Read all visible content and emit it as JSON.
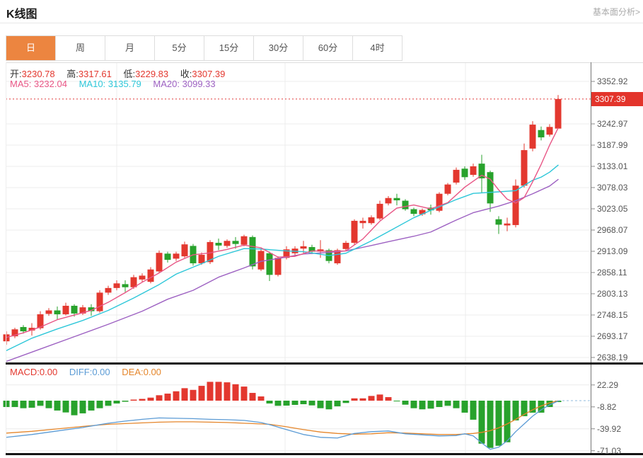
{
  "header": {
    "title": "K线图",
    "link": "基本面分析>"
  },
  "tabs": {
    "items": [
      "日",
      "周",
      "月",
      "5分",
      "15分",
      "30分",
      "60分",
      "4时"
    ],
    "active_index": 0
  },
  "ohlc": {
    "open_label": "开:",
    "open": "3230.78",
    "high_label": "高:",
    "high": "3317.61",
    "low_label": "低:",
    "low": "3229.83",
    "close_label": "收:",
    "close": "3307.39"
  },
  "ma_row": {
    "ma5_label": "MA5:",
    "ma5": "3232.04",
    "ma10_label": "MA10:",
    "ma10": "3135.79",
    "ma20_label": "MA20:",
    "ma20": "3099.33"
  },
  "macd_row": {
    "macd_label": "MACD:",
    "macd": "0.00",
    "diff_label": "DIFF:",
    "diff": "0.00",
    "dea_label": "DEA:",
    "dea": "0.00"
  },
  "colors": {
    "up": "#e3382f",
    "down": "#28a22c",
    "ma5": "#e85585",
    "ma10": "#2ec7d9",
    "ma20": "#9d61c2",
    "diff": "#5b9bd5",
    "dea": "#e5862b",
    "tab_active_bg": "#ec8540",
    "badge_bg": "#e3342b",
    "price_line": "#e03b3b",
    "dashed_tail": "#8fbbde",
    "grid": "#ececec",
    "axis_line": "#777",
    "dark_border": "#141414"
  },
  "chart_data": {
    "type": "candlestick",
    "title": "K线图 daily candlestick with MA5/MA10/MA20 and MACD",
    "main_axis": {
      "ticks": [
        3352.92,
        3242.97,
        3187.99,
        3133.01,
        3078.03,
        3023.05,
        2968.07,
        2913.09,
        2858.11,
        2803.13,
        2748.15,
        2693.17,
        2638.19
      ],
      "top_value": 3402.4,
      "bottom_value": 2625.3,
      "current_price": 3307.39
    },
    "candles": [
      [
        2680,
        2706,
        2671,
        2698
      ],
      [
        2693,
        2715,
        2688,
        2711
      ],
      [
        2717,
        2722,
        2700,
        2706
      ],
      [
        2708,
        2727,
        2695,
        2715
      ],
      [
        2714,
        2758,
        2710,
        2750
      ],
      [
        2751,
        2766,
        2746,
        2760
      ],
      [
        2760,
        2770,
        2736,
        2750
      ],
      [
        2750,
        2780,
        2747,
        2772
      ],
      [
        2772,
        2776,
        2744,
        2752
      ],
      [
        2752,
        2774,
        2748,
        2768
      ],
      [
        2768,
        2776,
        2746,
        2758
      ],
      [
        2758,
        2812,
        2754,
        2806
      ],
      [
        2806,
        2824,
        2800,
        2818
      ],
      [
        2818,
        2838,
        2812,
        2830
      ],
      [
        2828,
        2838,
        2808,
        2820
      ],
      [
        2820,
        2852,
        2816,
        2846
      ],
      [
        2840,
        2856,
        2834,
        2850
      ],
      [
        2834,
        2872,
        2830,
        2866
      ],
      [
        2861,
        2915,
        2857,
        2909
      ],
      [
        2907,
        2912,
        2884,
        2891
      ],
      [
        2894,
        2912,
        2888,
        2907
      ],
      [
        2900,
        2938,
        2896,
        2931
      ],
      [
        2927,
        2932,
        2876,
        2882
      ],
      [
        2882,
        2910,
        2878,
        2904
      ],
      [
        2885,
        2942,
        2880,
        2937
      ],
      [
        2935,
        2946,
        2916,
        2928
      ],
      [
        2927,
        2944,
        2922,
        2940
      ],
      [
        2940,
        2950,
        2920,
        2932
      ],
      [
        2930,
        2956,
        2926,
        2952
      ],
      [
        2950,
        2954,
        2866,
        2874
      ],
      [
        2866,
        2920,
        2862,
        2914
      ],
      [
        2908,
        2912,
        2836,
        2852
      ],
      [
        2852,
        2900,
        2848,
        2896
      ],
      [
        2896,
        2926,
        2892,
        2918
      ],
      [
        2908,
        2926,
        2902,
        2920
      ],
      [
        2920,
        2940,
        2908,
        2926
      ],
      [
        2924,
        2930,
        2906,
        2912
      ],
      [
        2912,
        2942,
        2896,
        2918
      ],
      [
        2916,
        2920,
        2882,
        2888
      ],
      [
        2882,
        2920,
        2878,
        2916
      ],
      [
        2919,
        2940,
        2914,
        2935
      ],
      [
        2935,
        2996,
        2930,
        2992
      ],
      [
        2986,
        3000,
        2972,
        2992
      ],
      [
        2986,
        3006,
        2982,
        3001
      ],
      [
        2998,
        3044,
        2994,
        3036
      ],
      [
        3037,
        3056,
        3032,
        3051
      ],
      [
        3051,
        3062,
        3032,
        3045
      ],
      [
        3044,
        3048,
        3018,
        3022
      ],
      [
        3022,
        3026,
        3004,
        3010
      ],
      [
        3009,
        3024,
        3005,
        3020
      ],
      [
        3026,
        3034,
        3008,
        3019
      ],
      [
        3018,
        3066,
        3014,
        3062
      ],
      [
        3062,
        3090,
        3058,
        3086
      ],
      [
        3091,
        3130,
        3086,
        3124
      ],
      [
        3127,
        3133,
        3098,
        3105
      ],
      [
        3111,
        3140,
        3106,
        3133
      ],
      [
        3140,
        3163,
        3064,
        3102
      ],
      [
        3118,
        3122,
        3015,
        3037
      ],
      [
        2996,
        3004,
        2958,
        2982
      ],
      [
        2980,
        3000,
        2965,
        2985
      ],
      [
        2981,
        3099,
        2975,
        3083
      ],
      [
        3083,
        3192,
        3078,
        3175
      ],
      [
        3179,
        3250,
        3172,
        3241
      ],
      [
        3227,
        3236,
        3200,
        3208
      ],
      [
        3215,
        3242,
        3210,
        3235
      ],
      [
        3230.78,
        3317.61,
        3229.83,
        3307.39
      ]
    ],
    "ma_lines": {
      "ma5_points": [
        [
          0,
          2690
        ],
        [
          2,
          2702
        ],
        [
          4,
          2717
        ],
        [
          6,
          2736
        ],
        [
          8,
          2748
        ],
        [
          10,
          2760
        ],
        [
          12,
          2781
        ],
        [
          14,
          2806
        ],
        [
          16,
          2833
        ],
        [
          18,
          2857
        ],
        [
          20,
          2885
        ],
        [
          22,
          2904
        ],
        [
          24,
          2909
        ],
        [
          26,
          2918
        ],
        [
          28,
          2929
        ],
        [
          30,
          2922
        ],
        [
          32,
          2898
        ],
        [
          34,
          2900
        ],
        [
          36,
          2914
        ],
        [
          38,
          2913
        ],
        [
          40,
          2914
        ],
        [
          42,
          2945
        ],
        [
          44,
          2991
        ],
        [
          46,
          3025
        ],
        [
          48,
          3033
        ],
        [
          50,
          3023
        ],
        [
          52,
          3039
        ],
        [
          54,
          3079
        ],
        [
          56,
          3110
        ],
        [
          57,
          3100
        ],
        [
          58,
          3072
        ],
        [
          59,
          3048
        ],
        [
          60,
          3038
        ],
        [
          61,
          3052
        ],
        [
          62,
          3093
        ],
        [
          63,
          3138
        ],
        [
          64,
          3188
        ],
        [
          65,
          3232
        ]
      ],
      "ma10_points": [
        [
          0,
          2656
        ],
        [
          3,
          2688
        ],
        [
          6,
          2712
        ],
        [
          9,
          2734
        ],
        [
          12,
          2760
        ],
        [
          15,
          2792
        ],
        [
          18,
          2827
        ],
        [
          20,
          2854
        ],
        [
          23,
          2881
        ],
        [
          25,
          2900
        ],
        [
          28,
          2920
        ],
        [
          30,
          2919
        ],
        [
          33,
          2914
        ],
        [
          35,
          2912
        ],
        [
          38,
          2902
        ],
        [
          40,
          2908
        ],
        [
          43,
          2940
        ],
        [
          45,
          2964
        ],
        [
          48,
          3000
        ],
        [
          50,
          3019
        ],
        [
          53,
          3047
        ],
        [
          55,
          3063
        ],
        [
          58,
          3067
        ],
        [
          60,
          3070
        ],
        [
          62,
          3097
        ],
        [
          63,
          3105
        ],
        [
          64,
          3118
        ],
        [
          65,
          3136
        ]
      ],
      "ma20_points": [
        [
          0,
          2628
        ],
        [
          4,
          2660
        ],
        [
          8,
          2692
        ],
        [
          12,
          2724
        ],
        [
          16,
          2758
        ],
        [
          19,
          2789
        ],
        [
          22,
          2812
        ],
        [
          25,
          2846
        ],
        [
          28,
          2870
        ],
        [
          30,
          2887
        ],
        [
          33,
          2898
        ],
        [
          35,
          2906
        ],
        [
          38,
          2910
        ],
        [
          40,
          2914
        ],
        [
          43,
          2928
        ],
        [
          45,
          2938
        ],
        [
          48,
          2952
        ],
        [
          50,
          2963
        ],
        [
          53,
          2994
        ],
        [
          55,
          3013
        ],
        [
          58,
          3030
        ],
        [
          60,
          3044
        ],
        [
          62,
          3062
        ],
        [
          64,
          3082
        ],
        [
          65,
          3099
        ]
      ]
    },
    "macd": {
      "axis": {
        "ticks": [
          22.29,
          -8.82,
          -39.92,
          -71.03
        ],
        "top_value": 49.2,
        "bottom_value": -74.3
      },
      "histogram": [
        -9,
        -9,
        -10.7,
        -10,
        -7.3,
        -10.7,
        -14,
        -16.7,
        -20.7,
        -18,
        -14,
        -10.7,
        -7.3,
        -4,
        -1.5,
        1.5,
        2.5,
        4.3,
        7.7,
        10,
        13.3,
        17.7,
        15.3,
        21,
        26.7,
        26.7,
        26,
        23.3,
        20,
        11,
        6,
        -4,
        -7.3,
        -7,
        -6,
        -5,
        -6.7,
        -10.7,
        -12.3,
        -8,
        -3.3,
        3.3,
        3.3,
        6.7,
        8.7,
        5,
        -1,
        -5.7,
        -10.7,
        -12.3,
        -11.3,
        -9,
        -7.3,
        -10.7,
        -17,
        -27,
        -61,
        -67,
        -64,
        -59,
        -28,
        -22,
        -17,
        -17,
        -9,
        -2
      ],
      "diff_points": [
        [
          0,
          -52
        ],
        [
          3,
          -48
        ],
        [
          6,
          -43
        ],
        [
          9,
          -38
        ],
        [
          12,
          -32
        ],
        [
          14,
          -29
        ],
        [
          16,
          -26.5
        ],
        [
          18,
          -24.5
        ],
        [
          20,
          -25
        ],
        [
          22,
          -25.5
        ],
        [
          24,
          -26.5
        ],
        [
          26,
          -27
        ],
        [
          28,
          -28
        ],
        [
          30,
          -31
        ],
        [
          31,
          -34
        ],
        [
          33,
          -41
        ],
        [
          35,
          -48
        ],
        [
          37,
          -52
        ],
        [
          39,
          -53
        ],
        [
          41,
          -46.5
        ],
        [
          43,
          -44
        ],
        [
          45,
          -43
        ],
        [
          47,
          -47
        ],
        [
          49,
          -48.5
        ],
        [
          51,
          -50
        ],
        [
          53,
          -49.5
        ],
        [
          54,
          -47
        ],
        [
          55,
          -50
        ],
        [
          56,
          -60
        ],
        [
          57,
          -69
        ],
        [
          58,
          -66
        ],
        [
          59,
          -57
        ],
        [
          60,
          -44
        ],
        [
          61,
          -33
        ],
        [
          62,
          -22
        ],
        [
          63,
          -13
        ],
        [
          64,
          -6
        ],
        [
          65,
          -0.5
        ]
      ],
      "dea_points": [
        [
          0,
          -46
        ],
        [
          3,
          -43.5
        ],
        [
          6,
          -40
        ],
        [
          9,
          -36.5
        ],
        [
          12,
          -33.5
        ],
        [
          14,
          -32.5
        ],
        [
          16,
          -31.5
        ],
        [
          18,
          -30.5
        ],
        [
          20,
          -30
        ],
        [
          22,
          -30
        ],
        [
          24,
          -30.5
        ],
        [
          26,
          -31
        ],
        [
          28,
          -32
        ],
        [
          30,
          -33
        ],
        [
          31,
          -33.5
        ],
        [
          33,
          -37
        ],
        [
          35,
          -41
        ],
        [
          37,
          -44.5
        ],
        [
          39,
          -46.5
        ],
        [
          41,
          -47.5
        ],
        [
          43,
          -47
        ],
        [
          45,
          -45.5
        ],
        [
          47,
          -46
        ],
        [
          49,
          -47
        ],
        [
          51,
          -48
        ],
        [
          53,
          -48
        ],
        [
          55,
          -46.5
        ],
        [
          56,
          -45
        ],
        [
          57,
          -42.5
        ],
        [
          58,
          -38.5
        ],
        [
          59,
          -33
        ],
        [
          60,
          -26.5
        ],
        [
          61,
          -19.5
        ],
        [
          62,
          -13
        ],
        [
          63,
          -7.5
        ],
        [
          64,
          -3
        ],
        [
          65,
          -0.2
        ]
      ]
    }
  }
}
